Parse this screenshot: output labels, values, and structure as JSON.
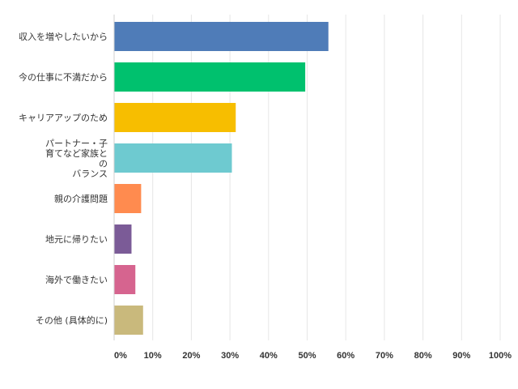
{
  "chart_data": {
    "type": "bar",
    "orientation": "horizontal",
    "categories": [
      [
        "収入を増やしたいから"
      ],
      [
        "今の仕事に不満だから"
      ],
      [
        "キャリアアップのため"
      ],
      [
        "パートナー・子",
        "育てなど家族と",
        "の",
        "バランス"
      ],
      [
        "親の介護問題"
      ],
      [
        "地元に帰りたい"
      ],
      [
        "海外で働きたい"
      ],
      [
        "その他 (具体的に)"
      ]
    ],
    "values": [
      55.5,
      49.5,
      31.5,
      30.5,
      7,
      4.5,
      5.5,
      7.5
    ],
    "colors": [
      "#4F7CB8",
      "#00C16E",
      "#F7BE00",
      "#6ECAD0",
      "#FF8B4F",
      "#7B5B97",
      "#D6648F",
      "#C9B97C"
    ],
    "xlim": [
      0,
      100
    ],
    "xticks": [
      "0%",
      "10%",
      "20%",
      "30%",
      "40%",
      "50%",
      "60%",
      "70%",
      "80%",
      "90%",
      "100%"
    ],
    "grid": true,
    "legend": "none"
  }
}
